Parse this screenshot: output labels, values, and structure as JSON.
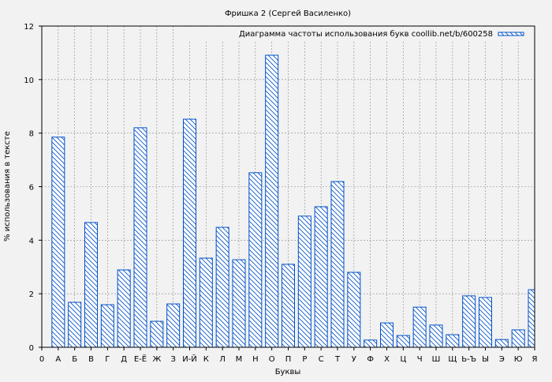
{
  "chart_data": {
    "type": "bar",
    "title": "Фришка 2 (Сергей Василенко)",
    "xlabel": "Буквы",
    "ylabel": "% использования в тексте",
    "ylim": [
      0,
      12
    ],
    "yticks": [
      "0",
      "2",
      "4",
      "6",
      "8",
      "10",
      "12"
    ],
    "grid": true,
    "legend_position": "top-right",
    "xtick_labels": [
      "0",
      "А",
      "Б",
      "В",
      "Г",
      "Д",
      "Е-Ё",
      "Ж",
      "З",
      "И-Й",
      "К",
      "Л",
      "М",
      "Н",
      "О",
      "П",
      "Р",
      "С",
      "Т",
      "У",
      "Ф",
      "Х",
      "Ц",
      "Ч",
      "Ш",
      "Щ",
      "Ь-Ъ",
      "Ы",
      "Э",
      "Ю",
      "Я"
    ],
    "categories": [
      "А",
      "Б",
      "В",
      "Г",
      "Д",
      "Е-Ё",
      "Ж",
      "З",
      "И-Й",
      "К",
      "Л",
      "М",
      "Н",
      "О",
      "П",
      "Р",
      "С",
      "Т",
      "У",
      "Ф",
      "Х",
      "Ц",
      "Ч",
      "Ш",
      "Щ",
      "Ь-Ъ",
      "Ы",
      "Э",
      "Ю",
      "Я"
    ],
    "series": [
      {
        "name": "Диаграмма частоты использования букв coollib.net/b/600258",
        "color": "#0050c8",
        "fill": "hatch",
        "values": [
          7.85,
          1.68,
          4.66,
          1.59,
          2.89,
          8.2,
          0.97,
          1.62,
          8.52,
          3.33,
          4.48,
          3.27,
          6.52,
          10.91,
          3.1,
          4.9,
          5.25,
          6.19,
          2.8,
          0.27,
          0.91,
          0.44,
          1.5,
          0.83,
          0.47,
          1.92,
          1.86,
          0.29,
          0.65,
          2.15
        ]
      }
    ]
  }
}
